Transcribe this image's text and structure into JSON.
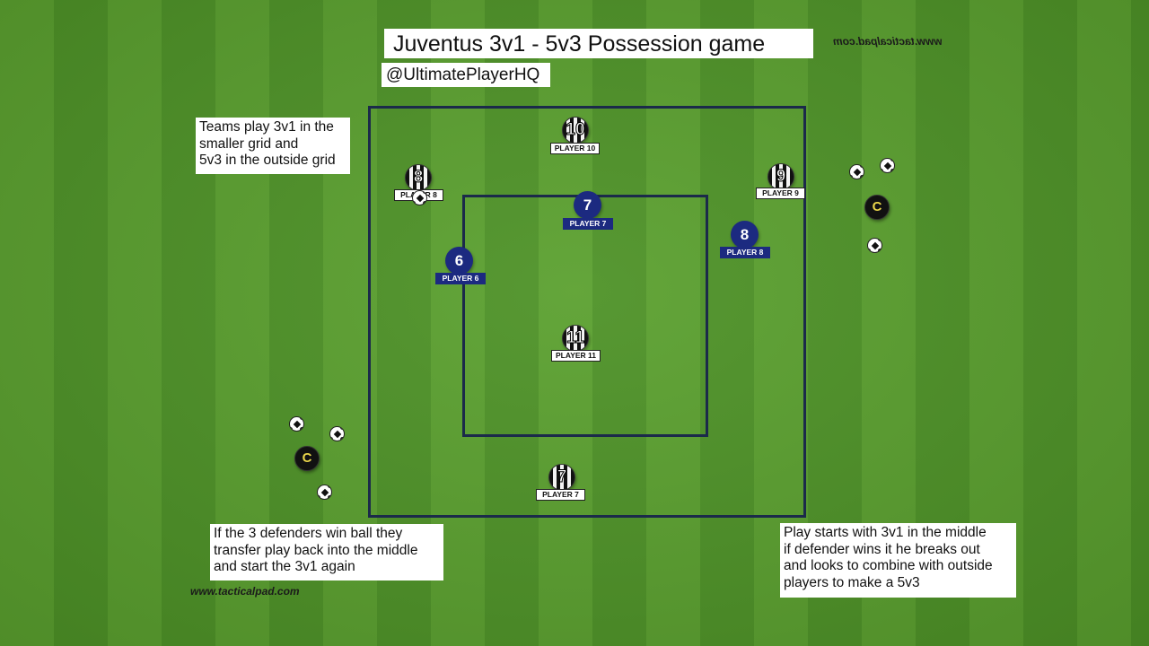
{
  "title": "Juventus 3v1 - 5v3 Possession game",
  "handle": "@UltimatePlayerHQ",
  "notes": {
    "top_left": [
      "Teams play 3v1 in the",
      "smaller grid and",
      "5v3 in the outside grid"
    ],
    "bottom_left": [
      "If the 3 defenders win ball they",
      "transfer play back into the middle",
      "and start the 3v1 again"
    ],
    "bottom_right": [
      "Play starts with 3v1 in the middle",
      "if defender wins it he breaks out",
      "and looks to combine with outside",
      "players to make a 5v3"
    ]
  },
  "watermark": "www.tacticalpad.com",
  "juventus_players": [
    {
      "number": "10",
      "label": "PLAYER 10"
    },
    {
      "number": "8",
      "label": "PLAYER 8"
    },
    {
      "number": "9",
      "label": "PLAYER 9"
    },
    {
      "number": "11",
      "label": "PLAYER 11"
    },
    {
      "number": "7",
      "label": "PLAYER 7"
    }
  ],
  "blue_players": [
    {
      "number": "7",
      "label": "PLAYER 7"
    },
    {
      "number": "6",
      "label": "PLAYER 6"
    },
    {
      "number": "8",
      "label": "PLAYER 8"
    }
  ],
  "coach_label": "C",
  "colors": {
    "pitch_light": "#5aa02e",
    "pitch_dark": "#4d9226",
    "grid_lines": "#1b2a4a",
    "blue_team": "#1c2a80"
  }
}
